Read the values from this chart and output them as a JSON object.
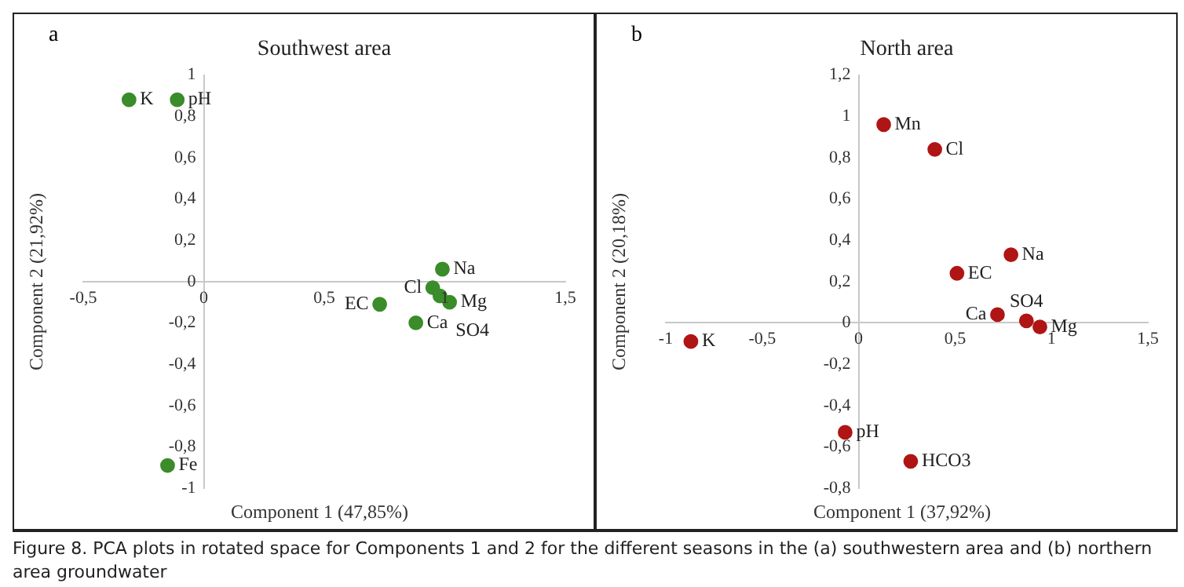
{
  "chart_data": [
    {
      "type": "scatter",
      "title": "Southwest area",
      "xlabel": "Component 1 (47,85%)",
      "ylabel": "Component 2 (21,92%)",
      "x": [
        -0.31,
        -0.11,
        0.99,
        0.95,
        1.02,
        0.98,
        0.73,
        0.88,
        -0.15
      ],
      "series": [
        {
          "color": "#3b8c2a",
          "values": [
            0.88,
            0.88,
            0.06,
            -0.03,
            -0.1,
            -0.07,
            -0.11,
            -0.2,
            -0.89
          ]
        }
      ],
      "xlim": [
        -0.5,
        1.5
      ],
      "xticks": [
        {
          "value": -0.5,
          "label": "-0,5"
        },
        0,
        {
          "value": 0.5,
          "label": "0,5"
        },
        1,
        {
          "value": 1.5,
          "label": "1,5"
        }
      ],
      "ylim": [
        -1,
        1
      ],
      "yticks": [
        -1,
        {
          "value": -0.8,
          "label": "-0,8"
        },
        {
          "value": -0.6,
          "label": "-0,6"
        },
        {
          "value": -0.4,
          "label": "-0,4"
        },
        {
          "value": -0.2,
          "label": "-0,2"
        },
        0,
        {
          "value": 0.2,
          "label": "0,2"
        },
        {
          "value": 0.4,
          "label": "0,4"
        },
        {
          "value": 0.6,
          "label": "0,6"
        },
        {
          "value": 0.8,
          "label": "0,8"
        },
        1
      ],
      "grid": false,
      "legend": false,
      "marker": "circle",
      "annotations": [
        "a",
        {
          "text": "K",
          "x": -0.31,
          "y": 0.88
        },
        {
          "text": "pH",
          "x": -0.11,
          "y": 0.88
        },
        {
          "text": "Na",
          "x": 0.99,
          "y": 0.06
        },
        {
          "text": "Cl",
          "x": 0.95,
          "y": -0.03
        },
        {
          "text": "Mg",
          "x": 1.02,
          "y": -0.1
        },
        {
          "text": "SO4",
          "x": 0.98,
          "y": -0.07
        },
        {
          "text": "EC",
          "x": 0.73,
          "y": -0.11
        },
        {
          "text": "Ca",
          "x": 0.88,
          "y": -0.2
        },
        {
          "text": "Fe",
          "x": -0.15,
          "y": -0.89
        },
        "Figure 8. PCA plots in rotated space for Components 1 and 2 for the different seasons in the (a) southwestern area and (b) northern area groundwater"
      ]
    },
    {
      "type": "scatter",
      "title": "North area",
      "xlabel": "Component 1 (37,92%)",
      "ylabel": "Component 2 (20,18%)",
      "x": [
        0.13,
        0.395,
        0.79,
        0.51,
        0.72,
        0.87,
        0.94,
        -0.87,
        -0.07,
        0.27
      ],
      "series": [
        {
          "color": "#b01515",
          "values": [
            0.96,
            0.84,
            0.33,
            0.24,
            0.04,
            0.01,
            -0.02,
            -0.09,
            -0.53,
            -0.67
          ]
        }
      ],
      "xlim": [
        -1,
        1.5
      ],
      "xticks": [
        -1,
        {
          "value": -0.5,
          "label": "-0,5"
        },
        0,
        {
          "value": 0.5,
          "label": "0,5"
        },
        1,
        {
          "value": 1.5,
          "label": "1,5"
        }
      ],
      "ylim": [
        -0.8,
        1.2
      ],
      "yticks": [
        {
          "value": -0.8,
          "label": "-0,8"
        },
        {
          "value": -0.6,
          "label": "-0,6"
        },
        {
          "value": -0.4,
          "label": "-0,4"
        },
        {
          "value": -0.2,
          "label": "-0,2"
        },
        0,
        {
          "value": 0.2,
          "label": "0,2"
        },
        {
          "value": 0.4,
          "label": "0,4"
        },
        {
          "value": 0.6,
          "label": "0,6"
        },
        {
          "value": 0.8,
          "label": "0,8"
        },
        1,
        {
          "value": 1.2,
          "label": "1,2"
        }
      ],
      "grid": false,
      "legend": false,
      "marker": "circle",
      "annotations": [
        "b",
        {
          "text": "Mn",
          "x": 0.13,
          "y": 0.96
        },
        {
          "text": "Cl",
          "x": 0.395,
          "y": 0.84
        },
        {
          "text": "Na",
          "x": 0.79,
          "y": 0.33
        },
        {
          "text": "EC",
          "x": 0.51,
          "y": 0.24
        },
        {
          "text": "Ca",
          "x": 0.72,
          "y": 0.04
        },
        {
          "text": "SO4",
          "x": 0.87,
          "y": 0.01
        },
        {
          "text": "Mg",
          "x": 0.94,
          "y": -0.02
        },
        {
          "text": "K",
          "x": -0.87,
          "y": -0.09
        },
        {
          "text": "pH",
          "x": -0.07,
          "y": -0.53
        },
        {
          "text": "HCO3",
          "x": 0.27,
          "y": -0.67
        }
      ]
    }
  ]
}
